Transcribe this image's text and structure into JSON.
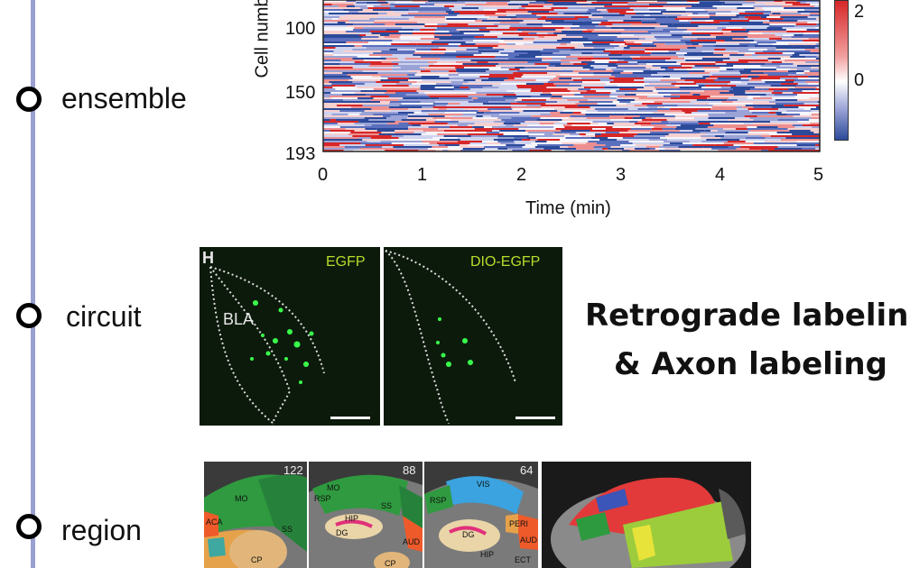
{
  "levels": [
    {
      "label": "ensemble"
    },
    {
      "label": "circuit"
    },
    {
      "label": "region"
    }
  ],
  "heatmap": {
    "ylabel": "Cell numb",
    "xlabel": "Time (min)",
    "y_ticks": [
      "100",
      "150",
      "193"
    ],
    "x_ticks": [
      "0",
      "1",
      "2",
      "3",
      "4",
      "5"
    ],
    "colorbar_ticks": [
      "2",
      "0"
    ]
  },
  "circuit_panels": {
    "panel_letter": "H",
    "left_label": "EGFP",
    "right_label": "DIO-EGFP",
    "region_label": "BLA"
  },
  "headline": {
    "line1": "Retrograde labeling",
    "line2": "& Axon labeling"
  },
  "atlas": {
    "section_numbers": [
      "122",
      "88",
      "64"
    ],
    "region_labels": [
      "MO",
      "SS",
      "ACA",
      "CP",
      "MO",
      "RSP",
      "SS",
      "HIP",
      "DG",
      "AUD",
      "CP",
      "RSP",
      "VIS",
      "HIP",
      "DG",
      "AUD",
      "ECT",
      "ECT",
      "PERI"
    ]
  },
  "colors": {
    "timeline": "#9aa0d0",
    "heat_high": "#d62728",
    "heat_low": "#2c4a9a",
    "micro_label": "#b7dc2b",
    "cell_green": "#39ff4a"
  }
}
